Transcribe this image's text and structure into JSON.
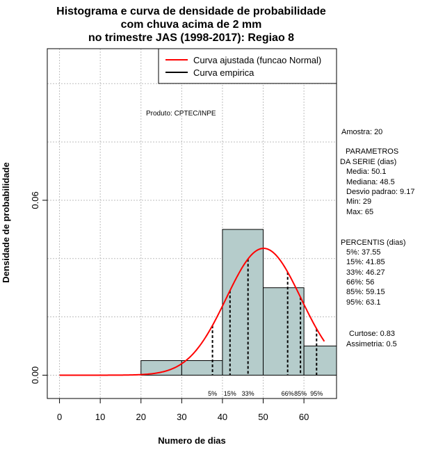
{
  "chart_data": {
    "type": "bar",
    "title_lines": [
      "Histograma e curva de densidade de probabilidade",
      "com chuva acima de 2 mm",
      "no trimestre JAS (1998-2017): Regiao 8"
    ],
    "xlabel": "Numero de dias",
    "ylabel": "Densidade de probabilidade",
    "xlim": [
      -3,
      68
    ],
    "ylim": [
      -0.008,
      0.112
    ],
    "x_ticks": [
      0,
      10,
      20,
      30,
      40,
      50,
      60
    ],
    "y_ticks": [
      0.0,
      0.06
    ],
    "y_tick_labels": [
      "0.00",
      "0.06"
    ],
    "grid": true,
    "bins": [
      {
        "x0": 20,
        "x1": 30,
        "density": 0.005
      },
      {
        "x0": 30,
        "x1": 40,
        "density": 0.005
      },
      {
        "x0": 40,
        "x1": 50,
        "density": 0.05
      },
      {
        "x0": 50,
        "x1": 60,
        "density": 0.03
      },
      {
        "x0": 60,
        "x1": 70,
        "density": 0.01
      }
    ],
    "bar_color": "#b5cccb",
    "series": [
      {
        "name": "Curva ajustada (funcao Normal)",
        "color": "#ff0000",
        "kind": "normal",
        "mean": 50.1,
        "sd": 9.17,
        "x_from": 0,
        "x_to": 65
      },
      {
        "name": "Curva empirica",
        "color": "#000000"
      }
    ],
    "legend_position": "top-right",
    "percentiles": [
      {
        "label": "5%",
        "x": 37.55
      },
      {
        "label": "15%",
        "x": 41.85
      },
      {
        "label": "33%",
        "x": 46.27
      },
      {
        "label": "66%",
        "x": 56
      },
      {
        "label": "85%",
        "x": 59.15
      },
      {
        "label": "95%",
        "x": 63.1
      }
    ]
  },
  "annotations": {
    "produto": "Produto: CPTEC/INPE",
    "amostra": "Amostra: 20",
    "parametros_title": "PARAMETROS",
    "parametros_sub": "DA SERIE (dias)",
    "media": "Media: 50.1",
    "mediana": "Mediana: 48.5",
    "desvio": "Desvio padrao: 9.17",
    "min": "Min: 29",
    "max": "Max: 65",
    "percentis_title": "PERCENTIS (dias)",
    "p5": "5%: 37.55",
    "p15": "15%: 41.85",
    "p33": "33%: 46.27",
    "p66": "66%: 56",
    "p85": "85%: 59.15",
    "p95": "95%: 63.1",
    "curtose": "Curtose: 0.83",
    "assimetria": "Assimetria: 0.5"
  }
}
